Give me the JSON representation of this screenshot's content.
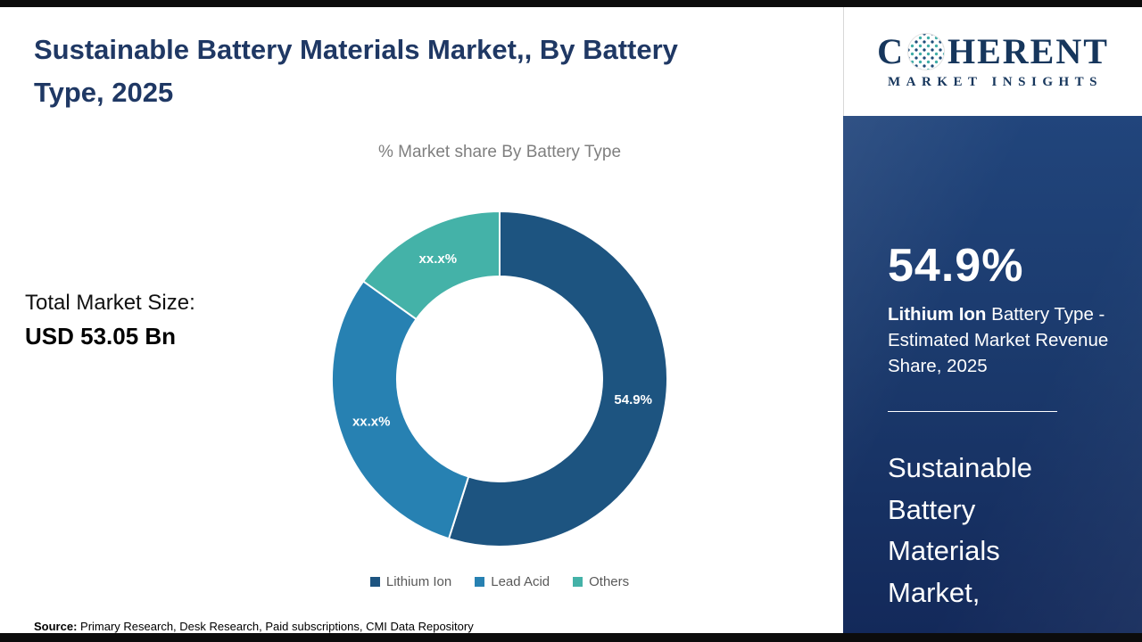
{
  "header": {
    "title": "Sustainable Battery Materials Market,, By Battery Type, 2025"
  },
  "chart_data": {
    "type": "donut",
    "title": "% Market share By Battery Type",
    "legend_position": "bottom",
    "segments": [
      {
        "name": "Lithium Ion",
        "value": 54.9,
        "label": "54.9%",
        "color": "#1d5480"
      },
      {
        "name": "Lead Acid",
        "value": 30.0,
        "label": "xx.x%",
        "color": "#2781b2"
      },
      {
        "name": "Others",
        "value": 15.1,
        "label": "xx.x%",
        "color": "#44b2a8"
      }
    ]
  },
  "market_size": {
    "label": "Total Market Size:",
    "value": "USD 53.05 Bn"
  },
  "source": {
    "label": "Source:",
    "text": " Primary Research, Desk Research, Paid subscriptions, CMI Data Repository"
  },
  "sidebar": {
    "logo": {
      "prefix": "C",
      "suffix": "HERENT",
      "tagline": "MARKET INSIGHTS"
    },
    "stat_value": "54.9%",
    "stat_label_bold": "Lithium Ion",
    "stat_label_rest": " Battery Type - Estimated Market Revenue Share, 2025",
    "panel_title": "Sustainable Battery Materials Market,"
  },
  "colors": {
    "title_navy": "#1f3864",
    "panel_blue_top": "#21457c",
    "panel_blue_bottom": "#13295a",
    "subtitle_gray": "#7f7f7f",
    "legend_text_gray": "#595959",
    "frame_black": "#0c0c0c"
  }
}
